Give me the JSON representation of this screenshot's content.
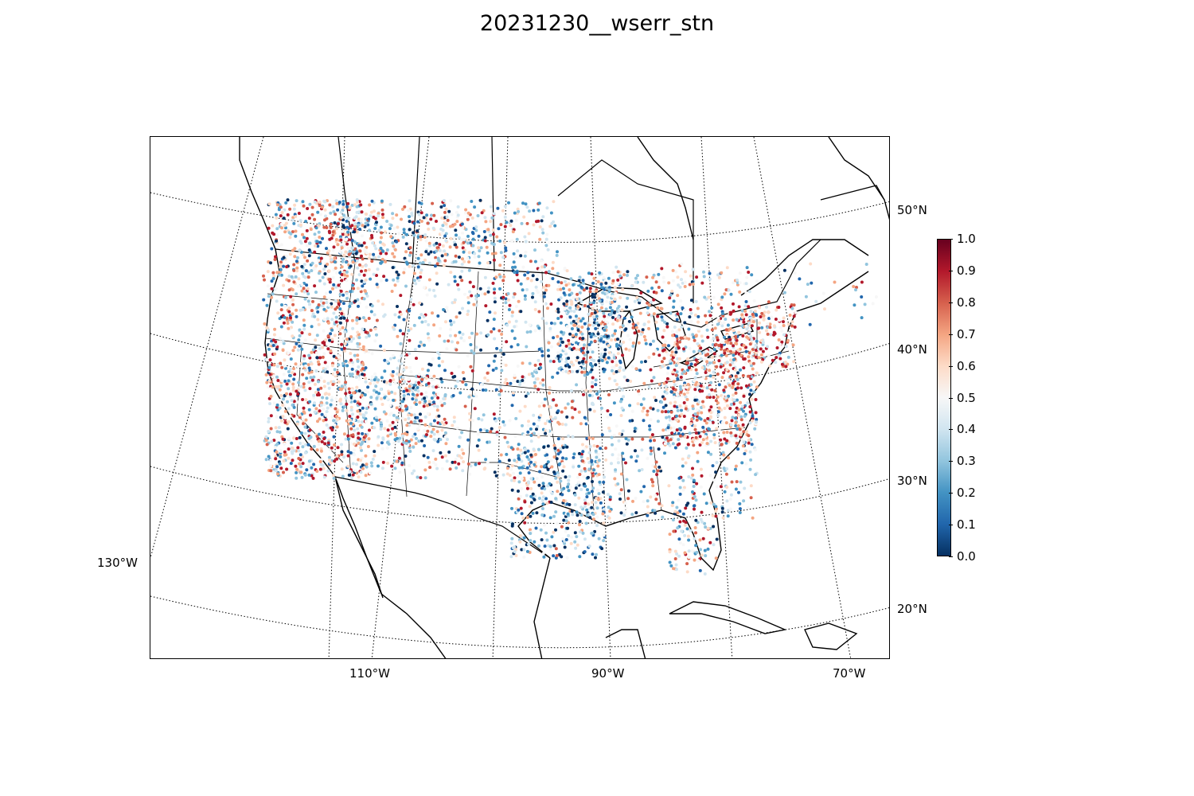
{
  "title": "20231230__wserr_stn",
  "map": {
    "lon_labels": [
      "130°W",
      "110°W",
      "90°W",
      "70°W"
    ],
    "lat_labels": [
      "50°N",
      "40°N",
      "30°N",
      "20°N"
    ],
    "basemap_features": [
      "coastlines",
      "country-borders",
      "state-borders",
      "lat-lon-graticule"
    ],
    "marker": "station-point"
  },
  "colorbar": {
    "colormap": "RdBu_r",
    "min": 0.0,
    "max": 1.0,
    "ticks": [
      "0.0",
      "0.1",
      "0.2",
      "0.3",
      "0.4",
      "0.5",
      "0.6",
      "0.7",
      "0.8",
      "0.9",
      "1.0"
    ],
    "colors": {
      "low": "#053061",
      "mid": "#f7f7f7",
      "high": "#67001f"
    }
  }
}
